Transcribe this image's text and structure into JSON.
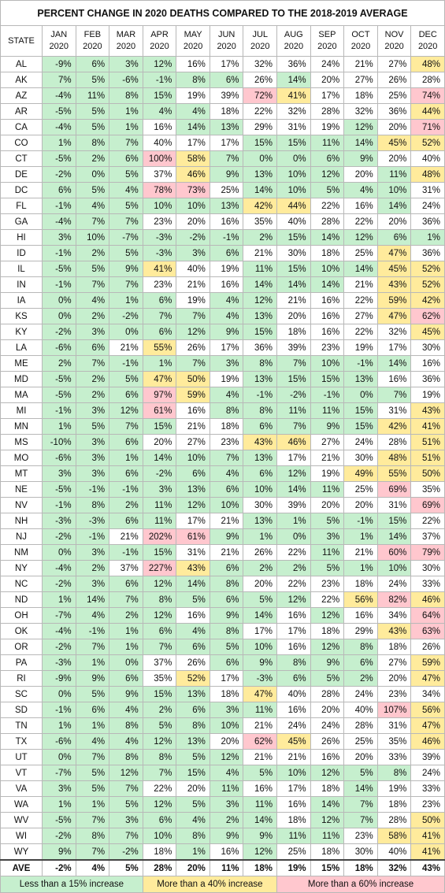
{
  "title": "PERCENT CHANGE IN 2020 DEATHS COMPARED TO THE 2018-2019 AVERAGE",
  "table": {
    "header": "STATE",
    "columns": [
      {
        "month": "JAN",
        "year": "2020"
      },
      {
        "month": "FEB",
        "year": "2020"
      },
      {
        "month": "MAR",
        "year": "2020"
      },
      {
        "month": "APR",
        "year": "2020"
      },
      {
        "month": "MAY",
        "year": "2020"
      },
      {
        "month": "JUN",
        "year": "2020"
      },
      {
        "month": "JUL",
        "year": "2020"
      },
      {
        "month": "AUG",
        "year": "2020"
      },
      {
        "month": "SEP",
        "year": "2020"
      },
      {
        "month": "OCT",
        "year": "2020"
      },
      {
        "month": "NOV",
        "year": "2020"
      },
      {
        "month": "DEC",
        "year": "2020"
      }
    ],
    "rows": [
      {
        "state": "AL",
        "values": [
          "-9%",
          "6%",
          "3%",
          "12%",
          "16%",
          "17%",
          "32%",
          "36%",
          "24%",
          "21%",
          "27%",
          "48%"
        ]
      },
      {
        "state": "AK",
        "values": [
          "7%",
          "5%",
          "-6%",
          "-1%",
          "8%",
          "6%",
          "26%",
          "14%",
          "20%",
          "27%",
          "26%",
          "28%"
        ]
      },
      {
        "state": "AZ",
        "values": [
          "-4%",
          "11%",
          "8%",
          "15%",
          "19%",
          "39%",
          "72%",
          "41%",
          "17%",
          "18%",
          "25%",
          "74%"
        ]
      },
      {
        "state": "AR",
        "values": [
          "-5%",
          "5%",
          "1%",
          "4%",
          "4%",
          "18%",
          "22%",
          "32%",
          "28%",
          "32%",
          "36%",
          "44%"
        ]
      },
      {
        "state": "CA",
        "values": [
          "-4%",
          "5%",
          "1%",
          "16%",
          "14%",
          "13%",
          "29%",
          "31%",
          "19%",
          "12%",
          "20%",
          "71%"
        ]
      },
      {
        "state": "CO",
        "values": [
          "1%",
          "8%",
          "7%",
          "40%",
          "17%",
          "17%",
          "15%",
          "15%",
          "11%",
          "14%",
          "45%",
          "52%"
        ]
      },
      {
        "state": "CT",
        "values": [
          "-5%",
          "2%",
          "6%",
          "100%",
          "58%",
          "7%",
          "0%",
          "0%",
          "6%",
          "9%",
          "20%",
          "40%"
        ]
      },
      {
        "state": "DE",
        "values": [
          "-2%",
          "0%",
          "5%",
          "37%",
          "46%",
          "9%",
          "13%",
          "10%",
          "12%",
          "20%",
          "11%",
          "48%"
        ]
      },
      {
        "state": "DC",
        "values": [
          "6%",
          "5%",
          "4%",
          "78%",
          "73%",
          "25%",
          "14%",
          "10%",
          "5%",
          "4%",
          "10%",
          "31%"
        ]
      },
      {
        "state": "FL",
        "values": [
          "-1%",
          "4%",
          "5%",
          "10%",
          "10%",
          "13%",
          "42%",
          "44%",
          "22%",
          "16%",
          "14%",
          "24%"
        ]
      },
      {
        "state": "GA",
        "values": [
          "-4%",
          "7%",
          "7%",
          "23%",
          "20%",
          "16%",
          "35%",
          "40%",
          "28%",
          "22%",
          "20%",
          "36%"
        ]
      },
      {
        "state": "HI",
        "values": [
          "3%",
          "10%",
          "-7%",
          "-3%",
          "-2%",
          "-1%",
          "2%",
          "15%",
          "14%",
          "12%",
          "6%",
          "1%"
        ]
      },
      {
        "state": "ID",
        "values": [
          "-1%",
          "2%",
          "5%",
          "-3%",
          "3%",
          "6%",
          "21%",
          "30%",
          "18%",
          "25%",
          "47%",
          "36%"
        ]
      },
      {
        "state": "IL",
        "values": [
          "-5%",
          "5%",
          "9%",
          "41%",
          "40%",
          "19%",
          "11%",
          "15%",
          "10%",
          "14%",
          "45%",
          "52%"
        ]
      },
      {
        "state": "IN",
        "values": [
          "-1%",
          "7%",
          "7%",
          "23%",
          "21%",
          "16%",
          "14%",
          "14%",
          "14%",
          "21%",
          "43%",
          "52%"
        ]
      },
      {
        "state": "IA",
        "values": [
          "0%",
          "4%",
          "1%",
          "6%",
          "19%",
          "4%",
          "12%",
          "21%",
          "16%",
          "22%",
          "59%",
          "42%"
        ]
      },
      {
        "state": "KS",
        "values": [
          "0%",
          "2%",
          "-2%",
          "7%",
          "7%",
          "4%",
          "13%",
          "20%",
          "16%",
          "27%",
          "47%",
          "62%"
        ]
      },
      {
        "state": "KY",
        "values": [
          "-2%",
          "3%",
          "0%",
          "6%",
          "12%",
          "9%",
          "15%",
          "18%",
          "16%",
          "22%",
          "32%",
          "45%"
        ]
      },
      {
        "state": "LA",
        "values": [
          "-6%",
          "6%",
          "21%",
          "55%",
          "26%",
          "17%",
          "36%",
          "39%",
          "23%",
          "19%",
          "17%",
          "30%"
        ]
      },
      {
        "state": "ME",
        "values": [
          "2%",
          "7%",
          "-1%",
          "1%",
          "7%",
          "3%",
          "8%",
          "7%",
          "10%",
          "-1%",
          "14%",
          "16%"
        ]
      },
      {
        "state": "MD",
        "values": [
          "-5%",
          "2%",
          "5%",
          "47%",
          "50%",
          "19%",
          "13%",
          "15%",
          "15%",
          "13%",
          "16%",
          "36%"
        ]
      },
      {
        "state": "MA",
        "values": [
          "-5%",
          "2%",
          "6%",
          "97%",
          "59%",
          "4%",
          "-1%",
          "-2%",
          "-1%",
          "0%",
          "7%",
          "19%"
        ]
      },
      {
        "state": "MI",
        "values": [
          "-1%",
          "3%",
          "12%",
          "61%",
          "16%",
          "8%",
          "8%",
          "11%",
          "11%",
          "15%",
          "31%",
          "43%"
        ]
      },
      {
        "state": "MN",
        "values": [
          "1%",
          "5%",
          "7%",
          "15%",
          "21%",
          "18%",
          "6%",
          "7%",
          "9%",
          "15%",
          "42%",
          "41%"
        ]
      },
      {
        "state": "MS",
        "values": [
          "-10%",
          "3%",
          "6%",
          "20%",
          "27%",
          "23%",
          "43%",
          "46%",
          "27%",
          "24%",
          "28%",
          "51%"
        ]
      },
      {
        "state": "MO",
        "values": [
          "-6%",
          "3%",
          "1%",
          "14%",
          "10%",
          "7%",
          "13%",
          "17%",
          "21%",
          "30%",
          "48%",
          "51%"
        ]
      },
      {
        "state": "MT",
        "values": [
          "3%",
          "3%",
          "6%",
          "-2%",
          "6%",
          "4%",
          "6%",
          "12%",
          "19%",
          "49%",
          "55%",
          "50%"
        ]
      },
      {
        "state": "NE",
        "values": [
          "-5%",
          "-1%",
          "-1%",
          "3%",
          "13%",
          "6%",
          "10%",
          "14%",
          "11%",
          "25%",
          "69%",
          "35%"
        ]
      },
      {
        "state": "NV",
        "values": [
          "-1%",
          "8%",
          "2%",
          "11%",
          "12%",
          "10%",
          "30%",
          "39%",
          "20%",
          "20%",
          "31%",
          "69%"
        ]
      },
      {
        "state": "NH",
        "values": [
          "-3%",
          "-3%",
          "6%",
          "11%",
          "17%",
          "21%",
          "13%",
          "1%",
          "5%",
          "-1%",
          "15%",
          "22%"
        ]
      },
      {
        "state": "NJ",
        "values": [
          "-2%",
          "-1%",
          "21%",
          "202%",
          "61%",
          "9%",
          "1%",
          "0%",
          "3%",
          "1%",
          "14%",
          "37%"
        ]
      },
      {
        "state": "NM",
        "values": [
          "0%",
          "3%",
          "-1%",
          "15%",
          "31%",
          "21%",
          "26%",
          "22%",
          "11%",
          "21%",
          "60%",
          "79%"
        ]
      },
      {
        "state": "NY",
        "values": [
          "-4%",
          "2%",
          "37%",
          "227%",
          "43%",
          "6%",
          "2%",
          "2%",
          "5%",
          "1%",
          "10%",
          "30%"
        ]
      },
      {
        "state": "NC",
        "values": [
          "-2%",
          "3%",
          "6%",
          "12%",
          "14%",
          "8%",
          "20%",
          "22%",
          "23%",
          "18%",
          "24%",
          "33%"
        ]
      },
      {
        "state": "ND",
        "values": [
          "1%",
          "14%",
          "7%",
          "8%",
          "5%",
          "6%",
          "5%",
          "12%",
          "22%",
          "56%",
          "82%",
          "46%"
        ]
      },
      {
        "state": "OH",
        "values": [
          "-7%",
          "4%",
          "2%",
          "12%",
          "16%",
          "9%",
          "14%",
          "16%",
          "12%",
          "16%",
          "34%",
          "64%"
        ]
      },
      {
        "state": "OK",
        "values": [
          "-4%",
          "-1%",
          "1%",
          "6%",
          "4%",
          "8%",
          "17%",
          "17%",
          "18%",
          "29%",
          "43%",
          "63%"
        ]
      },
      {
        "state": "OR",
        "values": [
          "-2%",
          "7%",
          "1%",
          "7%",
          "6%",
          "5%",
          "10%",
          "16%",
          "12%",
          "8%",
          "18%",
          "26%"
        ]
      },
      {
        "state": "PA",
        "values": [
          "-3%",
          "1%",
          "0%",
          "37%",
          "26%",
          "6%",
          "9%",
          "8%",
          "9%",
          "6%",
          "27%",
          "59%"
        ]
      },
      {
        "state": "RI",
        "values": [
          "-9%",
          "9%",
          "6%",
          "35%",
          "52%",
          "17%",
          "-3%",
          "6%",
          "5%",
          "2%",
          "20%",
          "47%"
        ]
      },
      {
        "state": "SC",
        "values": [
          "0%",
          "5%",
          "9%",
          "15%",
          "13%",
          "18%",
          "47%",
          "40%",
          "28%",
          "24%",
          "23%",
          "34%"
        ]
      },
      {
        "state": "SD",
        "values": [
          "-1%",
          "6%",
          "4%",
          "2%",
          "6%",
          "3%",
          "11%",
          "16%",
          "20%",
          "40%",
          "107%",
          "56%"
        ]
      },
      {
        "state": "TN",
        "values": [
          "1%",
          "1%",
          "8%",
          "5%",
          "8%",
          "10%",
          "21%",
          "24%",
          "24%",
          "28%",
          "31%",
          "47%"
        ]
      },
      {
        "state": "TX",
        "values": [
          "-6%",
          "4%",
          "4%",
          "12%",
          "13%",
          "20%",
          "62%",
          "45%",
          "26%",
          "25%",
          "35%",
          "46%"
        ]
      },
      {
        "state": "UT",
        "values": [
          "0%",
          "7%",
          "8%",
          "8%",
          "5%",
          "12%",
          "21%",
          "21%",
          "16%",
          "20%",
          "33%",
          "39%"
        ]
      },
      {
        "state": "VT",
        "values": [
          "-7%",
          "5%",
          "12%",
          "7%",
          "15%",
          "4%",
          "5%",
          "10%",
          "12%",
          "5%",
          "8%",
          "24%"
        ]
      },
      {
        "state": "VA",
        "values": [
          "3%",
          "5%",
          "7%",
          "22%",
          "20%",
          "11%",
          "16%",
          "17%",
          "18%",
          "14%",
          "19%",
          "33%"
        ]
      },
      {
        "state": "WA",
        "values": [
          "1%",
          "1%",
          "5%",
          "12%",
          "5%",
          "3%",
          "11%",
          "16%",
          "14%",
          "7%",
          "18%",
          "23%"
        ]
      },
      {
        "state": "WV",
        "values": [
          "-5%",
          "7%",
          "3%",
          "6%",
          "4%",
          "2%",
          "14%",
          "18%",
          "12%",
          "7%",
          "28%",
          "50%"
        ]
      },
      {
        "state": "WI",
        "values": [
          "-2%",
          "8%",
          "7%",
          "10%",
          "8%",
          "9%",
          "9%",
          "11%",
          "11%",
          "23%",
          "58%",
          "41%"
        ]
      },
      {
        "state": "WY",
        "values": [
          "9%",
          "7%",
          "-2%",
          "18%",
          "1%",
          "16%",
          "12%",
          "25%",
          "18%",
          "30%",
          "40%",
          "41%"
        ]
      }
    ],
    "average": {
      "label": "AVE",
      "values": [
        "-2%",
        "4%",
        "5%",
        "28%",
        "20%",
        "11%",
        "18%",
        "19%",
        "15%",
        "18%",
        "32%",
        "43%"
      ]
    }
  },
  "legend": [
    {
      "label": "Less than a 15% increase",
      "color": "#c6efce",
      "max": 15
    },
    {
      "label": "More than a 40% increase",
      "color": "#ffeb9c",
      "min": 41
    },
    {
      "label": "More than a 60% increase",
      "color": "#ffc7ce",
      "min": 60
    }
  ]
}
